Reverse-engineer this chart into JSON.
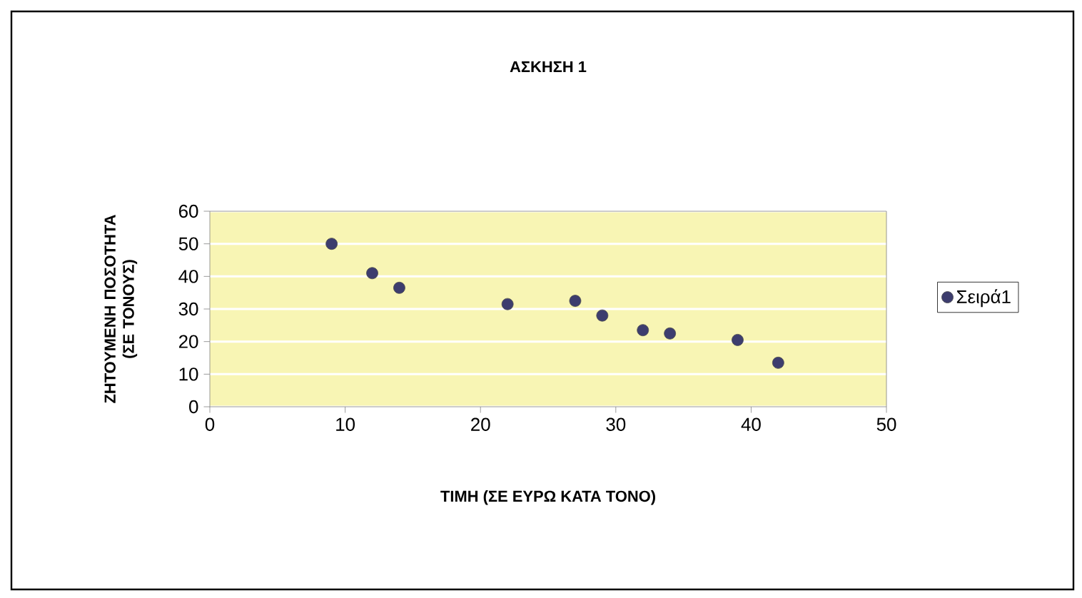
{
  "chart_data": {
    "type": "scatter",
    "title": "ΑΣΚΗΣΗ 1",
    "xlabel": "ΤΙΜΗ (ΣΕ ΕΥΡΩ ΚΑΤΑ ΤΟΝΟ)",
    "ylabel": "ΖΗΤΟΥΜΕΝΗ ΠΟΣΟΤΗΤΑ (ΣΕ ΤΟΝΟΥΣ)",
    "x": [
      9,
      12,
      14,
      22,
      27,
      29,
      32,
      34,
      39,
      42
    ],
    "series": [
      {
        "name": "Σειρά1",
        "color": "#3d3d6e",
        "values": [
          50,
          41,
          36.5,
          31.5,
          32.5,
          28,
          23.5,
          22.5,
          20.5,
          13.5
        ]
      }
    ],
    "xlim": [
      0,
      50
    ],
    "ylim": [
      0,
      60
    ],
    "xticks": [
      0,
      10,
      20,
      30,
      40,
      50
    ],
    "yticks": [
      0,
      10,
      20,
      30,
      40,
      50,
      60
    ],
    "grid": "y",
    "legend": "right"
  }
}
